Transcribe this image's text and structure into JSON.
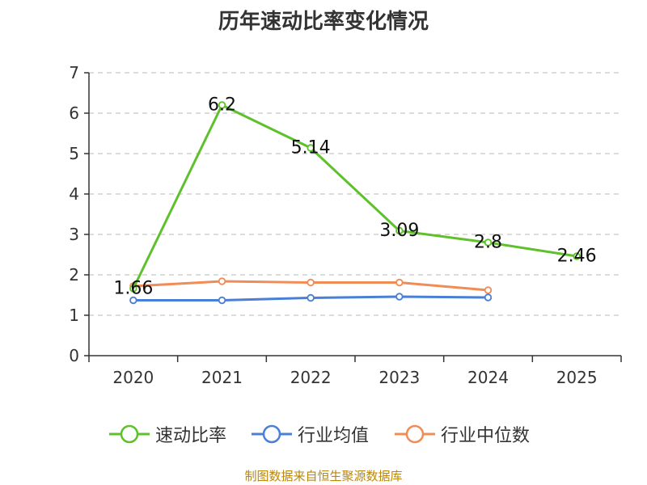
{
  "chart_data": {
    "type": "line",
    "title": "历年速动比率变化情况",
    "categories": [
      "2020",
      "2021",
      "2022",
      "2023",
      "2024",
      "2025"
    ],
    "y_ticks": [
      "0",
      "1",
      "2",
      "3",
      "4",
      "5",
      "6",
      "7"
    ],
    "ylim": [
      0,
      7
    ],
    "grid": true,
    "legend_position": "bottom",
    "series": [
      {
        "name": "速动比率",
        "color": "#5ec12b",
        "values": [
          1.66,
          6.2,
          5.14,
          3.09,
          2.8,
          2.46
        ],
        "labels": [
          "1.66",
          "6.2",
          "5.14",
          "3.09",
          "2.8",
          "2.46"
        ]
      },
      {
        "name": "行业均值",
        "color": "#4a7fd6",
        "values": [
          1.37,
          1.37,
          1.43,
          1.46,
          1.44,
          null
        ]
      },
      {
        "name": "行业中位数",
        "color": "#f08c56",
        "values": [
          1.72,
          1.84,
          1.81,
          1.81,
          1.62,
          null
        ]
      }
    ]
  },
  "footer": {
    "source": "制图数据来自恒生聚源数据库"
  }
}
